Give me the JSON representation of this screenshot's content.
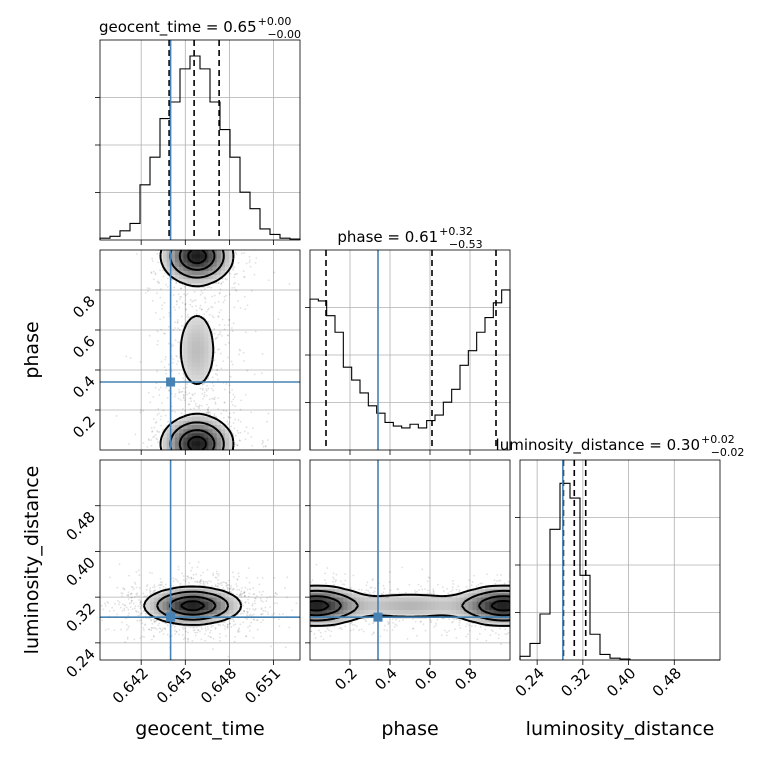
{
  "chart_data": {
    "type": "corner",
    "parameters": [
      {
        "name": "geocent_time",
        "axis_label": "geocent_time",
        "title_main": "geocent_time = 0.65",
        "title_sup": "+0.00",
        "title_sub": "−0.00",
        "range": [
          0.6392,
          0.6528
        ],
        "ticks": [
          0.642,
          0.645,
          0.648,
          0.651
        ],
        "tick_labels": [
          "0.642",
          "0.645",
          "0.648",
          "0.651"
        ],
        "median": 0.6456,
        "quantile_low": 0.6439,
        "quantile_high": 0.6473,
        "truth": 0.644,
        "histogram": [
          0.01,
          0.02,
          0.05,
          0.09,
          0.3,
          0.45,
          0.66,
          0.75,
          0.93,
          1.0,
          0.93,
          0.75,
          0.6,
          0.45,
          0.26,
          0.17,
          0.06,
          0.03,
          0.01,
          0.005
        ]
      },
      {
        "name": "phase",
        "axis_label": "phase",
        "title_main": "phase = 0.61",
        "title_sup": "+0.32",
        "title_sub": "−0.53",
        "range": [
          0.0,
          1.0
        ],
        "ticks": [
          0.2,
          0.4,
          0.6,
          0.8
        ],
        "tick_labels": [
          "0.2",
          "0.4",
          "0.6",
          "0.8"
        ],
        "median": 0.61,
        "quantile_low": 0.08,
        "quantile_high": 0.93,
        "truth": 0.34,
        "histogram": [
          0.82,
          0.81,
          0.73,
          0.64,
          0.45,
          0.38,
          0.31,
          0.24,
          0.2,
          0.15,
          0.13,
          0.12,
          0.14,
          0.12,
          0.16,
          0.19,
          0.26,
          0.33,
          0.46,
          0.54,
          0.64,
          0.72,
          0.8,
          0.87
        ]
      },
      {
        "name": "luminosity_distance",
        "axis_label": "luminosity_distance",
        "title_main": "luminosity_distance = 0.30",
        "title_sup": "+0.02",
        "title_sub": "−0.02",
        "range": [
          0.21,
          0.56
        ],
        "ticks": [
          0.24,
          0.32,
          0.4,
          0.48
        ],
        "tick_labels": [
          "0.24",
          "0.32",
          "0.40",
          "0.48"
        ],
        "median": 0.305,
        "quantile_low": 0.286,
        "quantile_high": 0.325,
        "truth": 0.285,
        "histogram": [
          0.02,
          0.09,
          0.25,
          0.71,
          0.96,
          0.88,
          0.46,
          0.14,
          0.03,
          0.01,
          0.005,
          0.0,
          0.0,
          0.0,
          0.0,
          0.0,
          0.0,
          0.0,
          0.0,
          0.0
        ]
      }
    ],
    "truth_color": "#4682b4",
    "grid": true,
    "density_blobs": {
      "geocent_time_vs_phase": [
        {
          "x": 0.6458,
          "y": 0.97,
          "sx": 0.0012,
          "sy": 0.07
        },
        {
          "x": 0.6458,
          "y": 0.03,
          "sx": 0.0012,
          "sy": 0.07
        },
        {
          "x": 0.6458,
          "y": 0.5,
          "sx": 0.0009,
          "sy": 0.14,
          "w": 0.25
        }
      ],
      "geocent_time_vs_luminosity_distance": [
        {
          "x": 0.6455,
          "y": 0.305,
          "sx": 0.0016,
          "sy": 0.016
        }
      ],
      "phase_vs_luminosity_distance": [
        {
          "x": 0.03,
          "y": 0.305,
          "sx": 0.12,
          "sy": 0.017
        },
        {
          "x": 0.97,
          "y": 0.305,
          "sx": 0.12,
          "sy": 0.017
        },
        {
          "x": 0.5,
          "y": 0.305,
          "sx": 0.18,
          "sy": 0.014,
          "w": 0.3
        }
      ]
    }
  }
}
